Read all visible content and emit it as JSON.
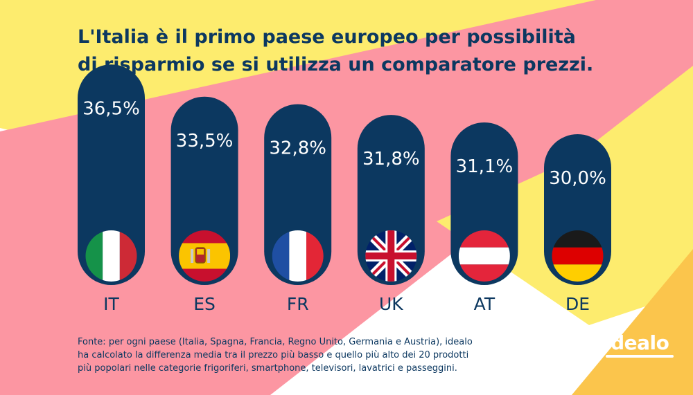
{
  "title": {
    "line1": "L'Italia è il primo paese europeo per possibilità",
    "line2": "di risparmio se si utilizza un comparatore prezzi."
  },
  "chart_data": {
    "type": "bar",
    "categories": [
      "IT",
      "ES",
      "FR",
      "UK",
      "AT",
      "DE"
    ],
    "values": [
      36.5,
      33.5,
      32.8,
      31.8,
      31.1,
      30.0
    ],
    "value_labels": [
      "36,5%",
      "33,5%",
      "32,8%",
      "31,8%",
      "31,1%",
      "30,0%"
    ],
    "flags": [
      "italy-flag-icon",
      "spain-flag-icon",
      "france-flag-icon",
      "uk-flag-icon",
      "austria-flag-icon",
      "germany-flag-icon"
    ],
    "unit": "%",
    "grid": false,
    "legend": "none"
  },
  "source": {
    "line1": "Fonte: per ogni paese (Italia, Spagna, Francia, Regno Unito, Germania e Austria), idealo",
    "line2": "ha calcolato la differenza media tra il prezzo più basso e quello più alto dei 20 prodotti",
    "line3": "più popolari nelle categorie frigoriferi, smartphone, televisori, lavatrici e passeggini."
  },
  "logo": {
    "text": "idealo"
  },
  "colors": {
    "bar": "#0c3860",
    "text": "#0c3860",
    "background_yellow": "#fdec6e",
    "background_pink": "#fc96a2",
    "logo_orange": "#fbc54c"
  }
}
